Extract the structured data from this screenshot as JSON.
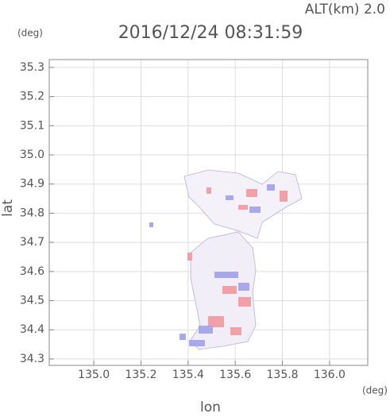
{
  "chart_data": {
    "type": "map",
    "title": "2016/12/24 08:31:59",
    "subtitle": "ALT(km) 2.0",
    "x_label": "lon",
    "y_label": "lat",
    "x_unit": "(deg)",
    "y_unit": "(deg)",
    "xlim": [
      134.811,
      136.162
    ],
    "ylim": [
      34.278,
      35.327
    ],
    "xticks": [
      {
        "value": 135,
        "label": "135.0"
      },
      135.2,
      135.4,
      135.6,
      135.8,
      {
        "value": 136,
        "label": "136.0"
      }
    ],
    "yticks": [
      34.3,
      34.4,
      34.5,
      34.6,
      34.7,
      34.8,
      34.9,
      {
        "value": 35,
        "label": "35.0"
      },
      35.1,
      35.2,
      35.3
    ],
    "grid": true
  }
}
